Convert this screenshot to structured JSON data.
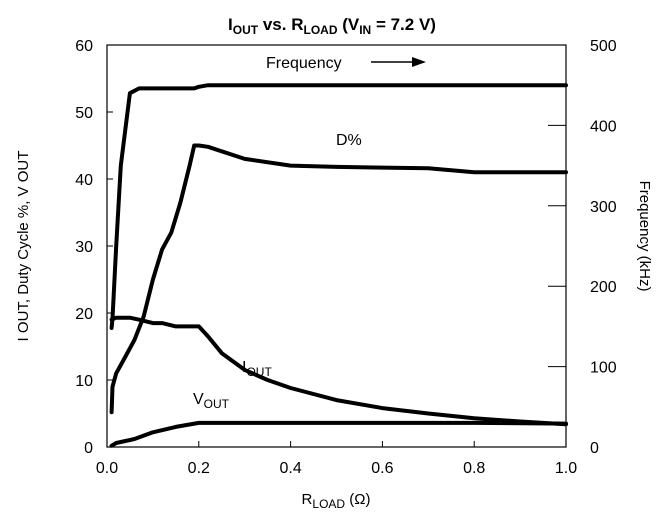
{
  "chart_data": {
    "type": "line",
    "title": {
      "parts": [
        "I",
        "OUT",
        " vs. R",
        "LOAD",
        " (V",
        "IN",
        " = 7.2 V)"
      ]
    },
    "xlabel": {
      "main": "R",
      "sub": "LOAD",
      "rest": " (Ω)"
    },
    "ylabel": "I OUT, Duty Cycle %, V OUT",
    "y2label": "Frequency (kHz)",
    "xlim": [
      0,
      1.0
    ],
    "ylim": [
      0,
      60
    ],
    "y2lim": [
      0,
      500
    ],
    "xticks": [
      "0.0",
      "0.2",
      "0.4",
      "0.6",
      "0.8",
      "1.0"
    ],
    "xtick_values": [
      0,
      0.2,
      0.4,
      0.6,
      0.8,
      1.0
    ],
    "yticks": [
      "0",
      "10",
      "20",
      "30",
      "40",
      "50",
      "60"
    ],
    "ytick_values": [
      0,
      10,
      20,
      30,
      40,
      50,
      60
    ],
    "y2ticks": [
      "0",
      "100",
      "200",
      "300",
      "400",
      "500"
    ],
    "y2tick_values": [
      0,
      100,
      200,
      300,
      400,
      500
    ],
    "grid": false,
    "series": [
      {
        "axis": "right",
        "x": [
          0.01,
          0.012,
          0.02,
          0.03,
          0.05,
          0.07,
          0.1,
          0.15,
          0.19,
          0.2,
          0.22,
          0.3,
          0.5,
          0.8,
          1.0
        ],
        "y": [
          148,
          160,
          250,
          350,
          440,
          446,
          446,
          446,
          446,
          448,
          450,
          450,
          450,
          450,
          450
        ]
      },
      {
        "axis": "left",
        "x": [
          0.01,
          0.012,
          0.02,
          0.04,
          0.06,
          0.08,
          0.1,
          0.12,
          0.14,
          0.16,
          0.18,
          0.19,
          0.2,
          0.22,
          0.3,
          0.4,
          0.5,
          0.6,
          0.7,
          0.8,
          1.0
        ],
        "y": [
          5.2,
          9,
          11,
          13.5,
          16,
          19.5,
          25,
          29.5,
          32,
          36.5,
          42,
          45,
          45,
          44.8,
          43,
          42,
          41.8,
          41.7,
          41.6,
          41,
          41
        ]
      },
      {
        "axis": "left",
        "x": [
          0.01,
          0.02,
          0.05,
          0.07,
          0.1,
          0.12,
          0.15,
          0.2,
          0.22,
          0.25,
          0.3,
          0.35,
          0.4,
          0.5,
          0.6,
          0.7,
          0.8,
          0.9,
          1.0
        ],
        "y": [
          19,
          19.3,
          19.3,
          19,
          18.5,
          18.5,
          18,
          18,
          16.5,
          14,
          11.5,
          10,
          8.8,
          7,
          5.8,
          5,
          4.3,
          3.8,
          3.4
        ]
      },
      {
        "axis": "left",
        "x": [
          0.01,
          0.02,
          0.04,
          0.06,
          0.1,
          0.15,
          0.2,
          0.3,
          0.5,
          0.8,
          1.0
        ],
        "y": [
          0.2,
          0.6,
          0.9,
          1.2,
          2.2,
          3,
          3.6,
          3.6,
          3.6,
          3.6,
          3.5
        ]
      }
    ],
    "annotations": [
      {
        "id": "frequency",
        "text": "Frequency",
        "arrow": true
      },
      {
        "id": "duty",
        "text": "D%"
      },
      {
        "id": "iout",
        "main": "I",
        "sub": "OUT"
      },
      {
        "id": "vout",
        "main": "V",
        "sub": "OUT"
      }
    ]
  }
}
